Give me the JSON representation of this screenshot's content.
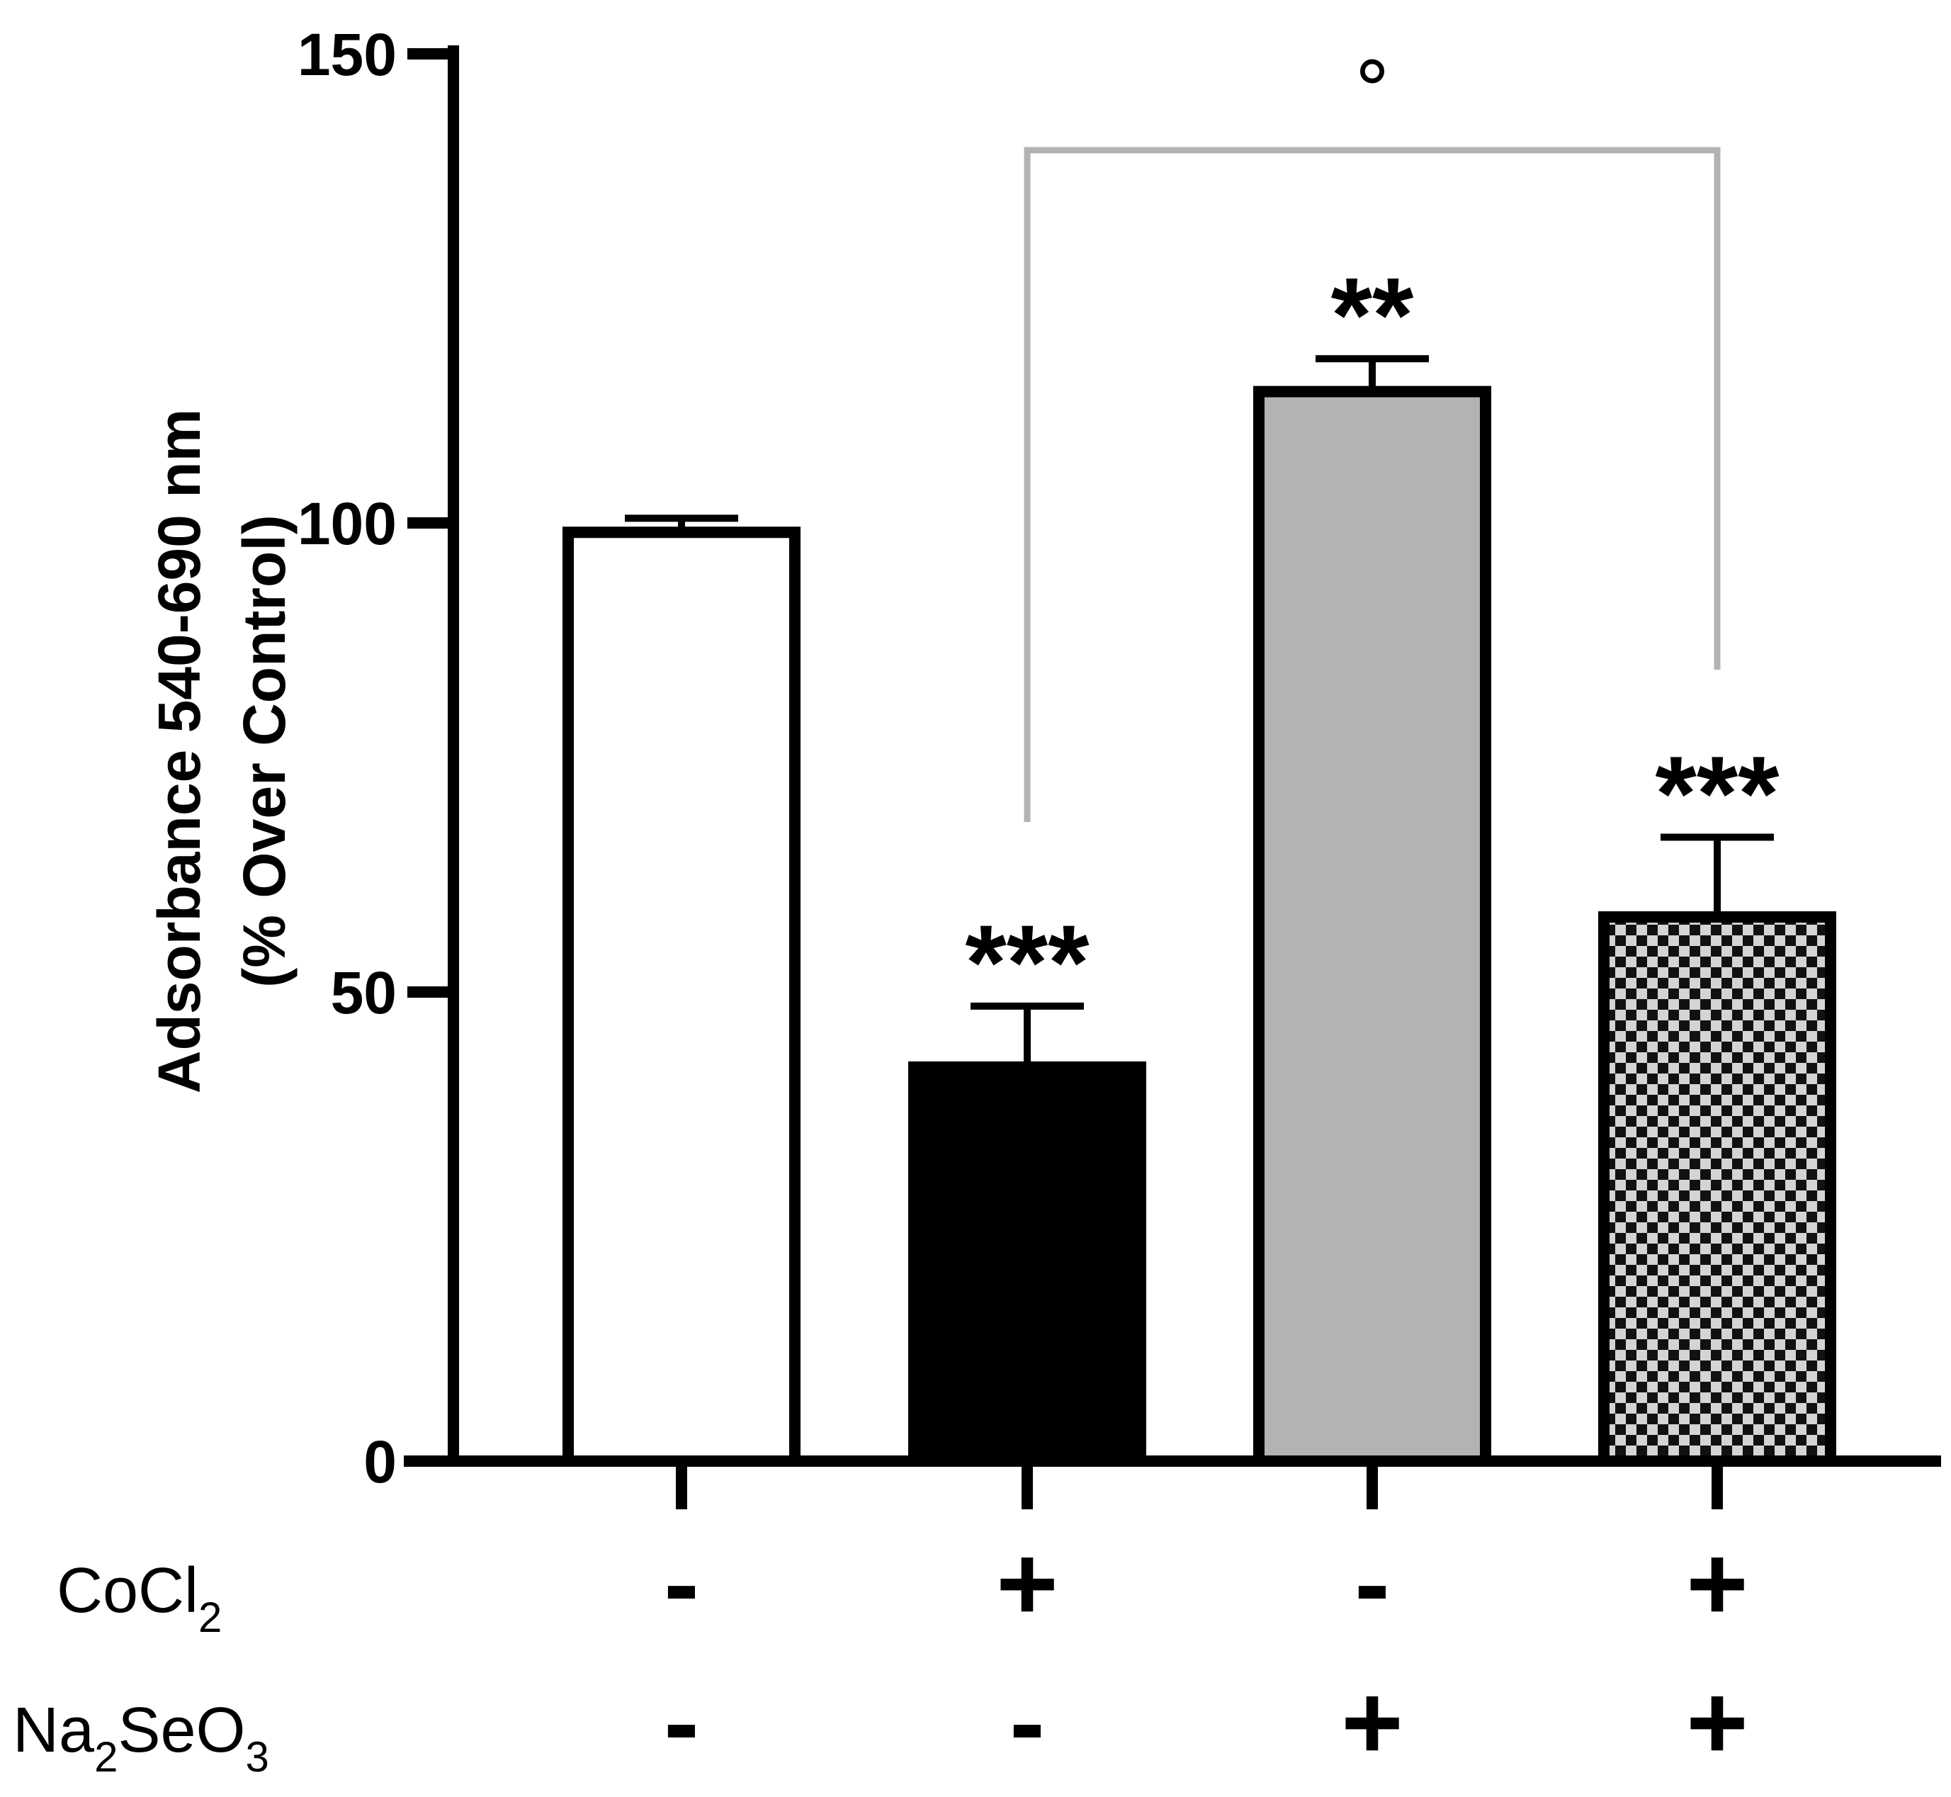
{
  "chart_data": {
    "type": "bar",
    "title": "",
    "xlabel": "",
    "ylabel_line1": "Adsorbance 540-690 nm",
    "ylabel_line2": "(% Over Control)",
    "ylim": [
      0,
      150
    ],
    "yticks": [
      "0",
      "50",
      "100",
      "150"
    ],
    "values": [
      99,
      42,
      114,
      58
    ],
    "errors": [
      1.5,
      6.5,
      3.5,
      8.5
    ],
    "fills": [
      "#ffffff",
      "#000000",
      "#b3b3b3",
      "checker"
    ],
    "significance": [
      "",
      "***",
      "**",
      "***"
    ],
    "bracket": {
      "from_bar": 1,
      "to_bar": 3,
      "label": "°"
    },
    "conditions": [
      {
        "name": "CoCl",
        "sub": "2",
        "tail": "",
        "signs": [
          "-",
          "+",
          "-",
          "+"
        ]
      },
      {
        "name": "Na",
        "sub": "2",
        "tail": "SeO",
        "sub2": "3",
        "signs": [
          "-",
          "-",
          "+",
          "+"
        ]
      }
    ]
  }
}
